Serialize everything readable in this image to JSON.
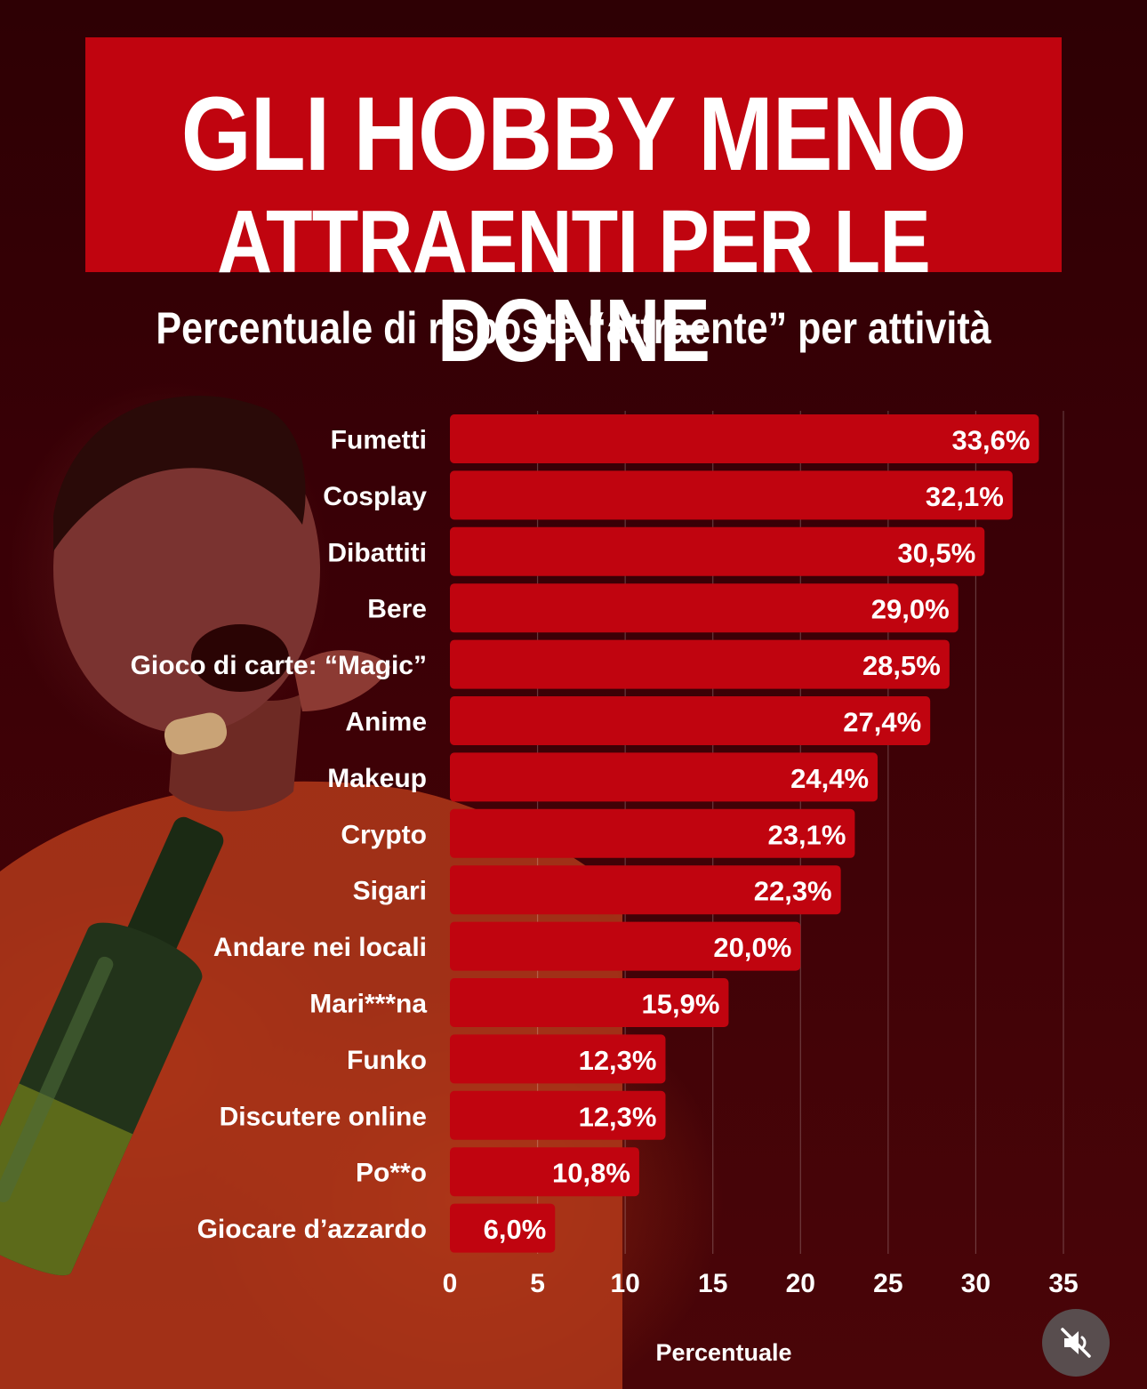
{
  "title_lines": [
    "GLI HOBBY MENO",
    "ATTRAENTI PER LE DONNE"
  ],
  "subtitle": "Percentuale di risposte “attraente” per attività",
  "colors": {
    "bar": "#c0040f",
    "title_bg": "#c0040f",
    "background": "#3a0006",
    "text": "#ffffff"
  },
  "icons": {
    "mute": "speaker-muted-icon"
  },
  "chart_data": {
    "type": "bar",
    "orientation": "horizontal",
    "categories": [
      "Fumetti",
      "Cosplay",
      "Dibattiti",
      "Bere",
      "Gioco di carte: “Magic”",
      "Anime",
      "Makeup",
      "Crypto",
      "Sigari",
      "Andare nei locali",
      "Mari***na",
      "Funko",
      "Discutere online",
      "Po**o",
      "Giocare d’azzardo"
    ],
    "values": [
      33.6,
      32.1,
      30.5,
      29.0,
      28.5,
      27.4,
      24.4,
      23.1,
      22.3,
      20.0,
      15.9,
      12.3,
      12.3,
      10.8,
      6.0
    ],
    "data_labels": [
      "33,6%",
      "32,1%",
      "30,5%",
      "29,0%",
      "28,5%",
      "27,4%",
      "24,4%",
      "23,1%",
      "22,3%",
      "20,0%",
      "15,9%",
      "12,3%",
      "12,3%",
      "10,8%",
      "6,0%"
    ],
    "xlabel": "Percentuale",
    "xlim": [
      0,
      35
    ],
    "xticks": [
      0,
      5,
      10,
      15,
      20,
      25,
      30,
      35
    ],
    "grid": true
  }
}
